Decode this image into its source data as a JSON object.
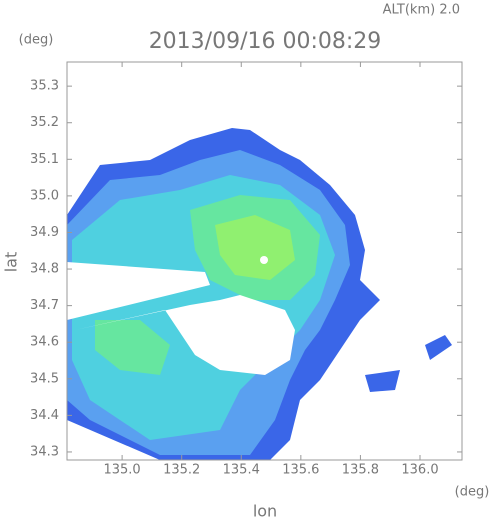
{
  "chart_data": {
    "type": "radar",
    "title": "2013/09/16 00:08:29",
    "subtitle": "ALT(km) 2.0",
    "x_label": "lon",
    "y_label": "lat",
    "x_unit": "(deg)",
    "y_unit": "(deg)",
    "xlim": [
      134.815,
      136.141
    ],
    "ylim": [
      34.278,
      35.366
    ],
    "xticks": [
      {
        "value": 135.0,
        "label": "135.0"
      },
      135.2,
      135.4,
      135.6,
      135.8,
      {
        "value": 136.0,
        "label": "136.0"
      }
    ],
    "yticks": [
      34.3,
      34.4,
      34.5,
      34.6,
      34.7,
      34.8,
      34.9,
      {
        "value": 35.0,
        "label": "35.0"
      },
      35.1,
      35.2,
      35.3
    ]
  }
}
